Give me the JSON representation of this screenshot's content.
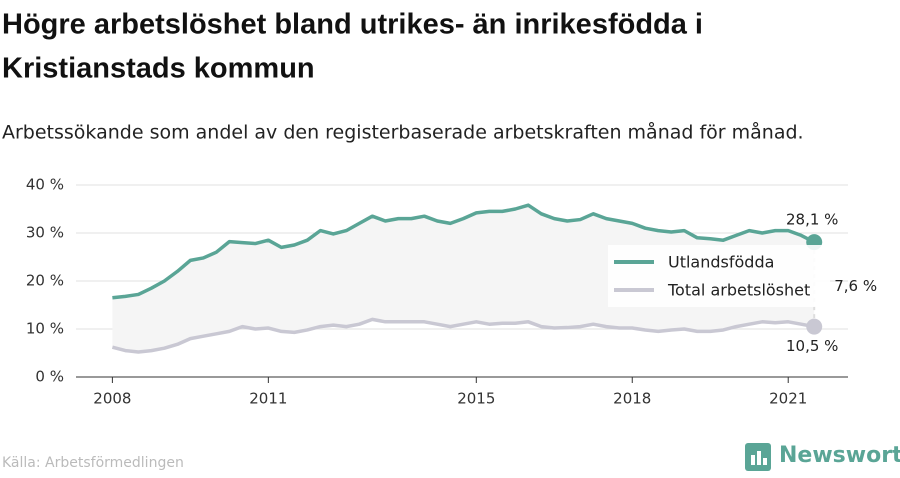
{
  "chart_data": {
    "type": "line",
    "title": "Högre arbetslöshet bland utrikes- än inrikesfödda i Kristianstads kommun",
    "title_lines": [
      "Högre arbetslöshet bland utrikes- än inrikesfödda i",
      "Kristianstads kommun"
    ],
    "subtitle": "Arbetssökande som andel av den registerbaserade arbetskraften månad för månad.",
    "source": "Källa: Arbetsförmedlingen",
    "brand": "Newsworthy",
    "x": [
      2008,
      2008.25,
      2008.5,
      2008.75,
      2009,
      2009.25,
      2009.5,
      2009.75,
      2010,
      2010.25,
      2010.5,
      2010.75,
      2011,
      2011.25,
      2011.5,
      2011.75,
      2012,
      2012.25,
      2012.5,
      2012.75,
      2013,
      2013.25,
      2013.5,
      2013.75,
      2014,
      2014.25,
      2014.5,
      2014.75,
      2015,
      2015.25,
      2015.5,
      2015.75,
      2016,
      2016.25,
      2016.5,
      2016.75,
      2017,
      2017.25,
      2017.5,
      2017.75,
      2018,
      2018.25,
      2018.5,
      2018.75,
      2019,
      2019.25,
      2019.5,
      2019.75,
      2020,
      2020.25,
      2020.5,
      2020.75,
      2021,
      2021.25,
      2021.5
    ],
    "series": [
      {
        "name": "Utlandsfödda",
        "color": "#5aa596",
        "end_label": "28,1 %",
        "values": [
          16.5,
          16.8,
          17.2,
          18.5,
          20,
          22,
          24.3,
          24.8,
          26,
          28.2,
          28,
          27.8,
          28.5,
          27,
          27.5,
          28.5,
          30.5,
          29.8,
          30.5,
          32,
          33.5,
          32.5,
          33,
          33,
          33.5,
          32.5,
          32,
          33,
          34.2,
          34.5,
          34.5,
          35,
          35.8,
          34,
          33,
          32.5,
          32.8,
          34,
          33,
          32.5,
          32,
          31,
          30.5,
          30.2,
          30.5,
          29,
          28.8,
          28.5,
          29.5,
          30.5,
          30,
          30.5,
          30.5,
          29.5,
          28.1
        ]
      },
      {
        "name": "Total arbetslöshet",
        "color": "#c9c8d3",
        "end_label": "10,5 %",
        "values": [
          6.2,
          5.5,
          5.2,
          5.5,
          6,
          6.8,
          8,
          8.5,
          9,
          9.5,
          10.5,
          10,
          10.2,
          9.5,
          9.3,
          9.8,
          10.5,
          10.8,
          10.5,
          11,
          12,
          11.5,
          11.5,
          11.5,
          11.5,
          11,
          10.5,
          11,
          11.5,
          11,
          11.2,
          11.2,
          11.5,
          10.5,
          10.2,
          10.3,
          10.5,
          11,
          10.5,
          10.2,
          10.2,
          9.8,
          9.5,
          9.8,
          10,
          9.5,
          9.5,
          9.8,
          10.5,
          11,
          11.5,
          11.3,
          11.5,
          11,
          10.5
        ]
      }
    ],
    "difference_label": "7,6 %",
    "xlim": [
      2007.3,
      2022.15
    ],
    "xticks": [
      2008,
      2011,
      2015,
      2018,
      2021
    ],
    "ylim": [
      0,
      40
    ],
    "yticks": [
      {
        "value": 0,
        "label": "0 %"
      },
      {
        "value": 10,
        "label": "10 %"
      },
      {
        "value": 20,
        "label": "20 %"
      },
      {
        "value": 30,
        "label": "30 %"
      },
      {
        "value": 40,
        "label": "40 %"
      }
    ],
    "grid": true,
    "legend": "right"
  }
}
